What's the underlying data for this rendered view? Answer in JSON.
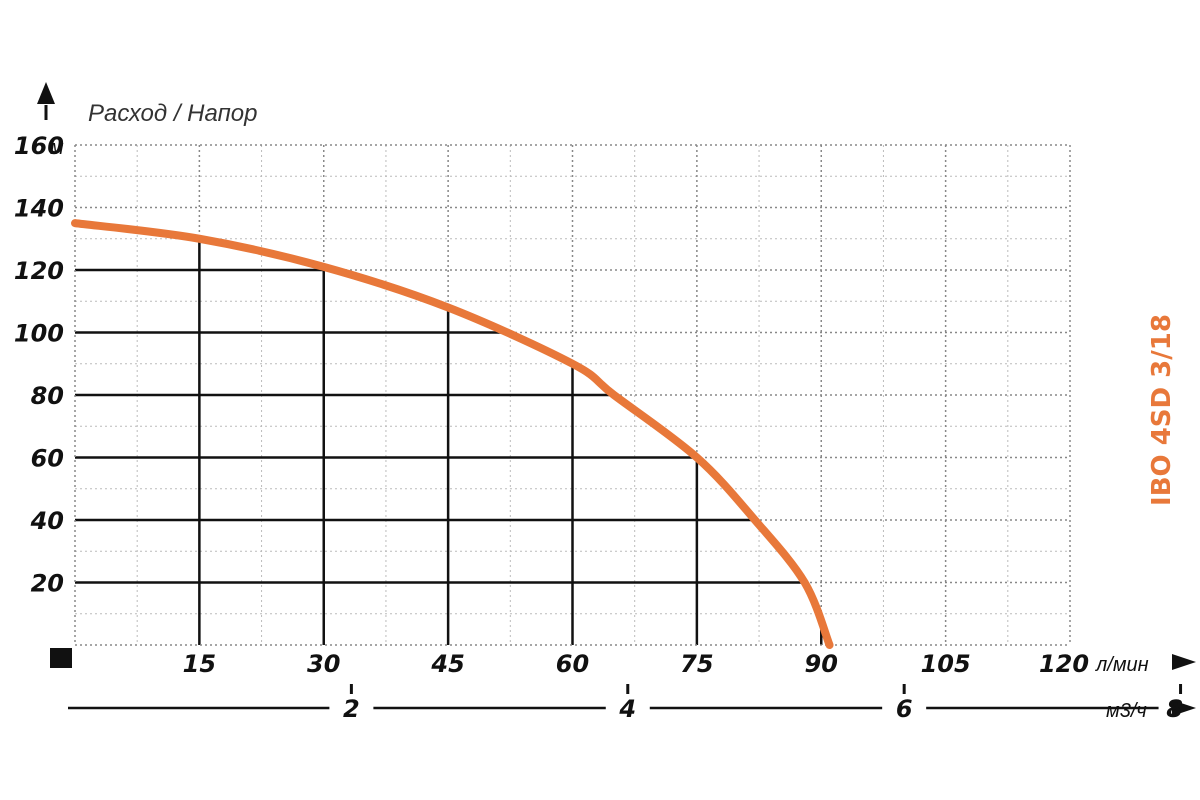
{
  "chart_data": {
    "type": "line",
    "title": "Расход / Напор",
    "model_label": "IBO 4SD 3/18",
    "y_unit": "м",
    "x_unit": "л/мин",
    "x2_unit": "м3/ч",
    "ylim": [
      0,
      160
    ],
    "xlim": [
      0,
      120
    ],
    "y_ticks": [
      "20",
      "40",
      "60",
      "80",
      "100",
      "120",
      "140",
      "160"
    ],
    "x_ticks": [
      "15",
      "30",
      "45",
      "60",
      "75",
      "90",
      "105",
      "120"
    ],
    "x2_ticks": [
      "2",
      "4",
      "6",
      "8"
    ],
    "series": [
      {
        "color": "#e8783a",
        "x": [
          0,
          15,
          30,
          45,
          60,
          65,
          75,
          82,
          88,
          91
        ],
        "y": [
          135,
          130,
          121,
          108,
          90,
          80,
          60,
          40,
          20,
          0
        ]
      }
    ],
    "grid": true
  }
}
